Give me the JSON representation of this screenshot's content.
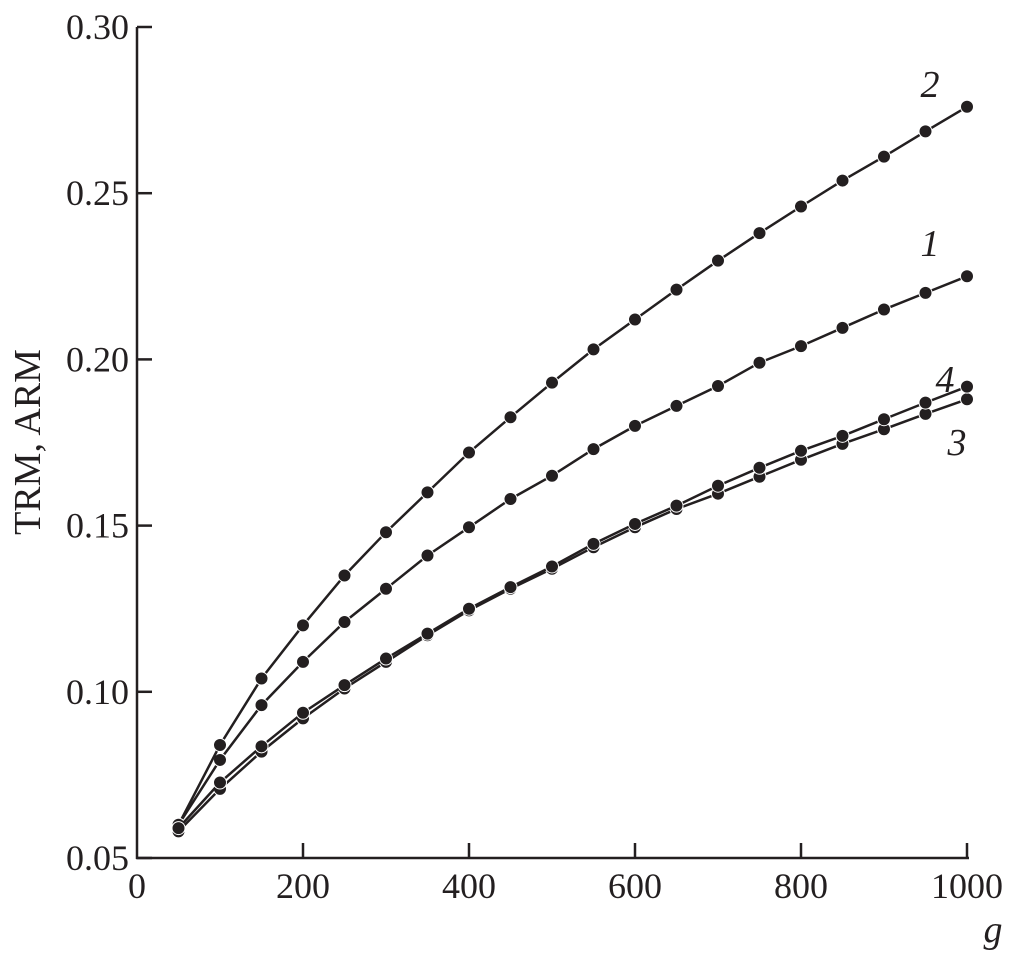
{
  "chart_data": {
    "type": "line",
    "title": "",
    "xlabel": "g",
    "ylabel": "TRM, ARM",
    "xlim": [
      0,
      1000
    ],
    "ylim": [
      0.05,
      0.3
    ],
    "xticks": [
      0,
      200,
      400,
      600,
      800,
      1000
    ],
    "xtick_labels": [
      "0",
      "200",
      "400",
      "600",
      "800",
      "1000"
    ],
    "yticks": [
      0.05,
      0.1,
      0.15,
      0.2,
      0.25,
      0.3
    ],
    "ytick_labels": [
      "0.05",
      "0.10",
      "0.15",
      "0.20",
      "0.25",
      "0.30"
    ],
    "grid": false,
    "marker": "filled-circle",
    "color": "#231f20",
    "x": [
      50,
      100,
      150,
      200,
      250,
      300,
      350,
      400,
      450,
      500,
      550,
      600,
      650,
      700,
      750,
      800,
      850,
      900,
      950,
      1000
    ],
    "series": [
      {
        "name": "1",
        "values": [
          0.06,
          0.0795,
          0.096,
          0.109,
          0.121,
          0.131,
          0.141,
          0.1495,
          0.158,
          0.165,
          0.173,
          0.18,
          0.186,
          0.192,
          0.199,
          0.204,
          0.2095,
          0.215,
          0.22,
          0.225
        ]
      },
      {
        "name": "2",
        "values": [
          0.06,
          0.084,
          0.104,
          0.12,
          0.135,
          0.148,
          0.16,
          0.172,
          0.1826,
          0.193,
          0.203,
          0.212,
          0.221,
          0.2297,
          0.238,
          0.246,
          0.2538,
          0.261,
          0.2686,
          0.276
        ]
      },
      {
        "name": "3",
        "values": [
          0.058,
          0.0708,
          0.082,
          0.092,
          0.101,
          0.109,
          0.117,
          0.1245,
          0.131,
          0.137,
          0.1435,
          0.1495,
          0.155,
          0.1596,
          0.1647,
          0.1698,
          0.1746,
          0.179,
          0.1836,
          0.188
        ]
      },
      {
        "name": "4",
        "values": [
          0.059,
          0.0727,
          0.0836,
          0.0937,
          0.102,
          0.11,
          0.1175,
          0.125,
          0.1315,
          0.1377,
          0.1445,
          0.1505,
          0.156,
          0.162,
          0.1674,
          0.1725,
          0.177,
          0.182,
          0.187,
          0.1918
        ]
      }
    ]
  }
}
